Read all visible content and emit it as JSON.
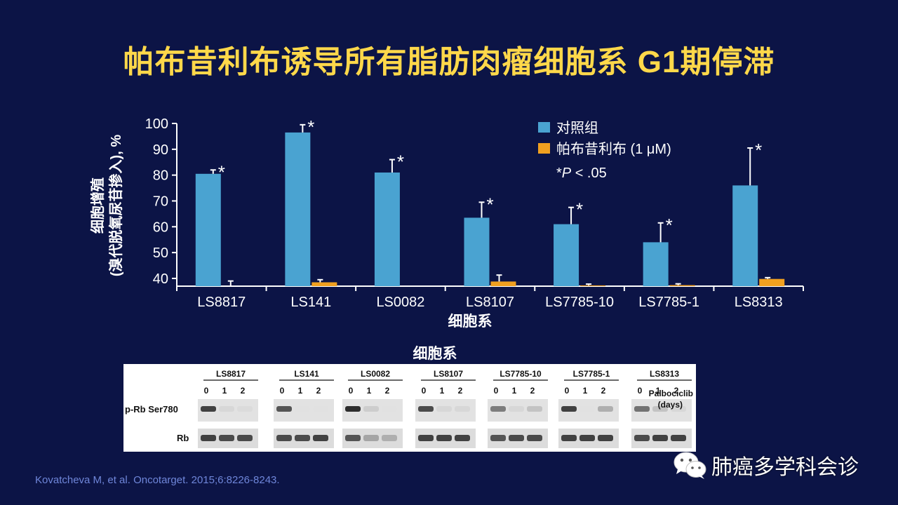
{
  "slide": {
    "title": "帕布昔利布诱导所有脂肪肉瘤细胞系 G1期停滞",
    "citation": "Kovatcheva M, et al. Oncotarget. 2015;6:8226-8243.",
    "watermark": "肺癌多学科会诊",
    "watermark_icon": "wechat-icon"
  },
  "chart_data": {
    "type": "bar",
    "categories": [
      "LS8817",
      "LS141",
      "LS0082",
      "LS8107",
      "LS7785-10",
      "LS7785-1",
      "LS8313"
    ],
    "ylabel_line1": "细胞增殖",
    "ylabel_line2": "(溴代脱氧尿苷掺入), %",
    "xlabel": "细胞系",
    "ylim": [
      37,
      100
    ],
    "yticks": [
      40,
      50,
      60,
      70,
      80,
      90,
      100
    ],
    "series": [
      {
        "name": "对照组",
        "color": "#4aa3d1",
        "values": [
          80.5,
          96.5,
          81,
          63.5,
          61,
          54,
          76
        ],
        "errors": [
          1.5,
          3,
          5,
          6,
          6.5,
          7.5,
          14.5
        ]
      },
      {
        "name": "帕布昔利布 (1 μM)",
        "color": "#f0a020",
        "values": [
          36.5,
          38.5,
          36.5,
          38.8,
          37.3,
          37.4,
          39.8
        ],
        "errors": [
          2,
          1,
          0,
          2.5,
          0.5,
          0.5,
          0.5
        ]
      }
    ],
    "significance": [
      "*",
      "*",
      "*",
      "*",
      "*",
      "*",
      "*"
    ],
    "legend_note_p": "P",
    "legend_note_prefix": "*",
    "legend_note_suffix": " < .05",
    "legend_position": "top-right",
    "grid": false
  },
  "blot": {
    "title": "细胞系",
    "row_labels": [
      "p-Rb Ser780",
      "Rb"
    ],
    "day_labels": [
      "0",
      "1",
      "2"
    ],
    "side_label_line1": "Palbociclib",
    "side_label_line2": "(days)",
    "cell_lines": [
      "LS8817",
      "LS141",
      "LS0082",
      "LS8107",
      "LS7785-10",
      "LS7785-1",
      "LS8313"
    ],
    "prb_intensity": [
      [
        0.85,
        0.1,
        0.08
      ],
      [
        0.75,
        0.05,
        0.05
      ],
      [
        0.95,
        0.15,
        0.05
      ],
      [
        0.8,
        0.1,
        0.1
      ],
      [
        0.55,
        0.1,
        0.2
      ],
      [
        0.85,
        0.05,
        0.3
      ],
      [
        0.6,
        0.2,
        0.1
      ]
    ],
    "rb_intensity": [
      [
        0.85,
        0.8,
        0.8
      ],
      [
        0.8,
        0.8,
        0.85
      ],
      [
        0.75,
        0.35,
        0.3
      ],
      [
        0.85,
        0.85,
        0.85
      ],
      [
        0.75,
        0.8,
        0.8
      ],
      [
        0.85,
        0.85,
        0.85
      ],
      [
        0.8,
        0.85,
        0.85
      ]
    ]
  }
}
